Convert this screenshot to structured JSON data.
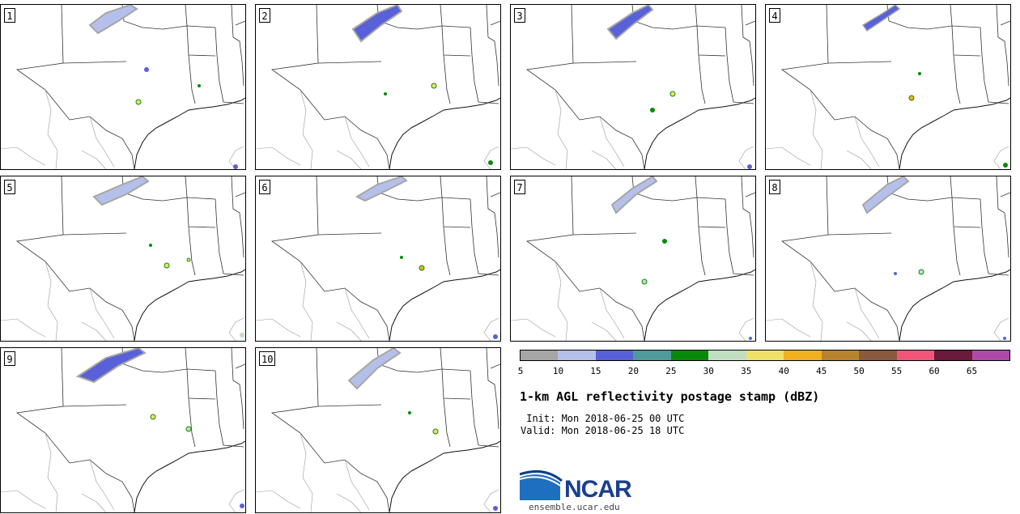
{
  "panels": [
    {
      "label": "1"
    },
    {
      "label": "2"
    },
    {
      "label": "3"
    },
    {
      "label": "4"
    },
    {
      "label": "5"
    },
    {
      "label": "6"
    },
    {
      "label": "7"
    },
    {
      "label": "8"
    },
    {
      "label": "9"
    },
    {
      "label": "10"
    }
  ],
  "colorbar": {
    "colors": [
      "#a6a6a6",
      "#b5c0ea",
      "#5861d8",
      "#4f9a9a",
      "#0a8a0a",
      "#c0dfc0",
      "#efe06a",
      "#f0b020",
      "#b8832e",
      "#8a5a3e",
      "#f2557a",
      "#6a1a3a",
      "#b04aa8"
    ],
    "ticks": [
      "5",
      "10",
      "15",
      "20",
      "25",
      "30",
      "35",
      "40",
      "45",
      "50",
      "55",
      "60",
      "65"
    ]
  },
  "title": "1-km AGL reflectivity postage stamp (dBZ)",
  "init": " Init: Mon 2018-06-25 00 UTC",
  "valid": "Valid: Mon 2018-06-25 18 UTC",
  "logo": {
    "text": "NCAR",
    "site": "ensemble.ucar.edu"
  }
}
